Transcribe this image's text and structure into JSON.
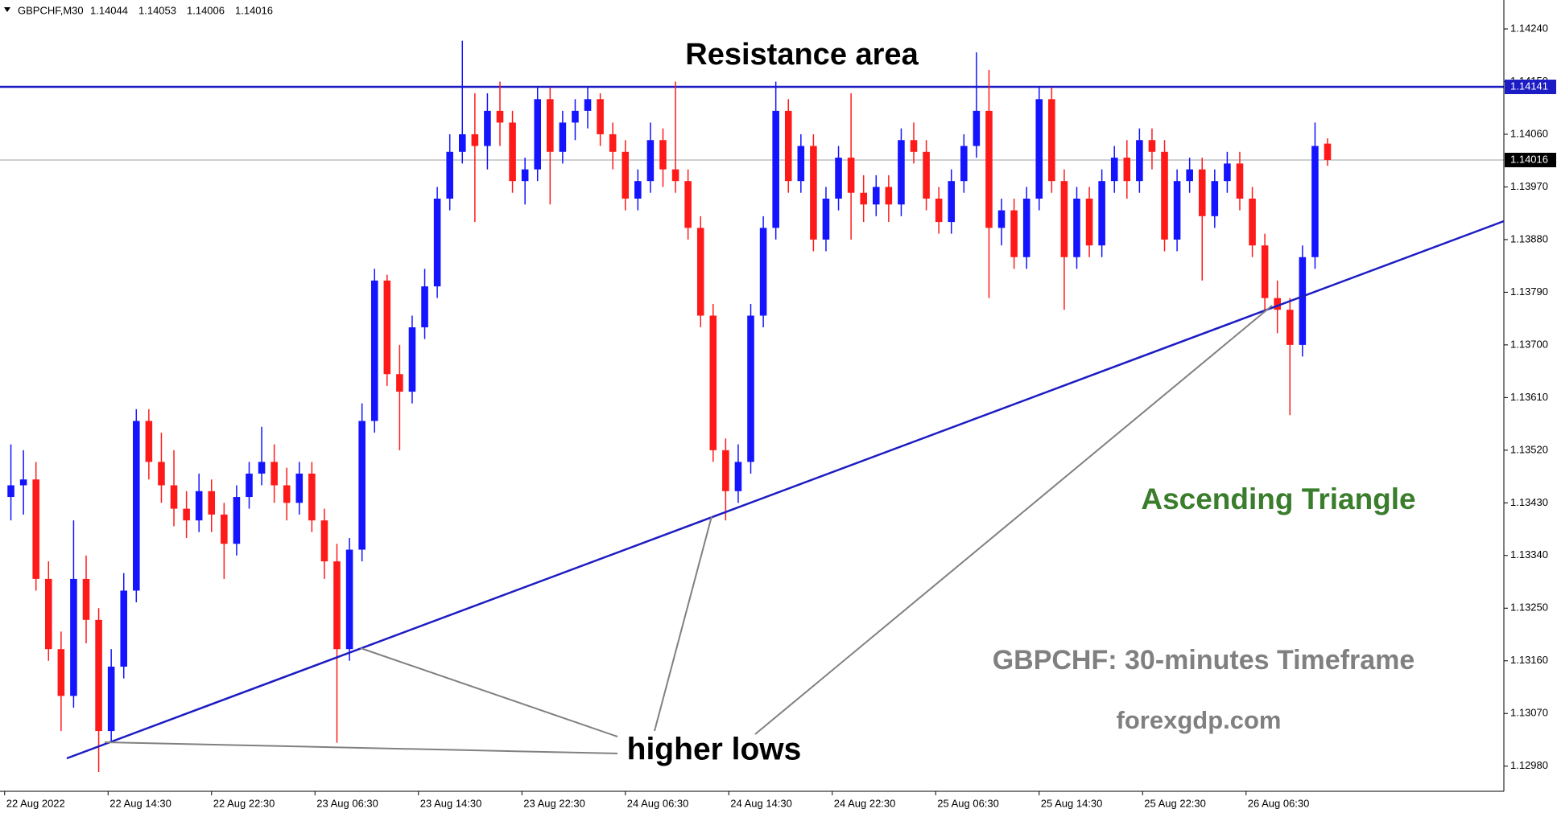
{
  "chart_data": {
    "type": "candlestick",
    "symbol": "GBPCHF,M30",
    "annotations": {
      "resistance": "Resistance area",
      "pattern": "Ascending Triangle",
      "timeframe": "GBPCHF: 30-minutes Timeframe",
      "site": "forexgdp.com",
      "lows": "higher lows"
    },
    "up_color": "#1414ff",
    "down_color": "#ff1a1a",
    "resistance_level": 1.14141,
    "ylim": [
      1.12937,
      1.14284
    ],
    "yticks": [
      {
        "value": 1.1424,
        "label": "1.14240"
      },
      {
        "value": 1.1415,
        "label": "1.14150"
      },
      {
        "value": 1.1406,
        "label": "1.14060"
      },
      {
        "value": 1.1397,
        "label": "1.13970"
      },
      {
        "value": 1.1388,
        "label": "1.13880"
      },
      {
        "value": 1.1379,
        "label": "1.13790"
      },
      {
        "value": 1.137,
        "label": "1.13700"
      },
      {
        "value": 1.1361,
        "label": "1.13610"
      },
      {
        "value": 1.1352,
        "label": "1.13520"
      },
      {
        "value": 1.1343,
        "label": "1.13430"
      },
      {
        "value": 1.1334,
        "label": "1.13340"
      },
      {
        "value": 1.1325,
        "label": "1.13250"
      },
      {
        "value": 1.1316,
        "label": "1.13160"
      },
      {
        "value": 1.1307,
        "label": "1.13070"
      },
      {
        "value": 1.1298,
        "label": "1.12980"
      }
    ],
    "xlim": [
      -0.87,
      119.06
    ],
    "xticks": [
      {
        "value": -0.5,
        "label": "22 Aug 2022"
      },
      {
        "value": 7.75,
        "label": "22 Aug 14:30"
      },
      {
        "value": 16,
        "label": "22 Aug 22:30"
      },
      {
        "value": 24.25,
        "label": "23 Aug 06:30"
      },
      {
        "value": 32.5,
        "label": "23 Aug 14:30"
      },
      {
        "value": 40.75,
        "label": "23 Aug 22:30"
      },
      {
        "value": 49,
        "label": "24 Aug 06:30"
      },
      {
        "value": 57.25,
        "label": "24 Aug 14:30"
      },
      {
        "value": 65.5,
        "label": "24 Aug 22:30"
      },
      {
        "value": 73.75,
        "label": "25 Aug 06:30"
      },
      {
        "value": 82,
        "label": "25 Aug 14:30"
      },
      {
        "value": 90.25,
        "label": "25 Aug 22:30"
      },
      {
        "value": 98.5,
        "label": "26 Aug 06:30"
      }
    ],
    "candles": [
      [
        1.1344,
        1.1353,
        1.134,
        1.1346
      ],
      [
        1.1346,
        1.1352,
        1.1341,
        1.1347
      ],
      [
        1.1347,
        1.135,
        1.1328,
        1.133
      ],
      [
        1.133,
        1.1333,
        1.1316,
        1.1318
      ],
      [
        1.1318,
        1.1321,
        1.1304,
        1.131
      ],
      [
        1.131,
        1.134,
        1.1308,
        1.133
      ],
      [
        1.133,
        1.1334,
        1.1319,
        1.1323
      ],
      [
        1.1323,
        1.1325,
        1.1297,
        1.1304
      ],
      [
        1.1304,
        1.1318,
        1.1302,
        1.1315
      ],
      [
        1.1315,
        1.1331,
        1.1313,
        1.1328
      ],
      [
        1.1328,
        1.1359,
        1.1326,
        1.1357
      ],
      [
        1.1357,
        1.1359,
        1.1347,
        1.135
      ],
      [
        1.135,
        1.1355,
        1.1343,
        1.1346
      ],
      [
        1.1346,
        1.1352,
        1.1339,
        1.1342
      ],
      [
        1.1342,
        1.1345,
        1.1337,
        1.134
      ],
      [
        1.134,
        1.1348,
        1.1338,
        1.1345
      ],
      [
        1.1345,
        1.1347,
        1.1338,
        1.1341
      ],
      [
        1.1341,
        1.1343,
        1.133,
        1.1336
      ],
      [
        1.1336,
        1.1346,
        1.1334,
        1.1344
      ],
      [
        1.1344,
        1.135,
        1.1342,
        1.1348
      ],
      [
        1.1348,
        1.1356,
        1.1346,
        1.135
      ],
      [
        1.135,
        1.1353,
        1.1343,
        1.1346
      ],
      [
        1.1346,
        1.1349,
        1.134,
        1.1343
      ],
      [
        1.1343,
        1.135,
        1.1341,
        1.1348
      ],
      [
        1.1348,
        1.135,
        1.1338,
        1.134
      ],
      [
        1.134,
        1.1342,
        1.133,
        1.1333
      ],
      [
        1.1333,
        1.1336,
        1.1302,
        1.1318
      ],
      [
        1.1318,
        1.1337,
        1.1316,
        1.1335
      ],
      [
        1.1335,
        1.136,
        1.1333,
        1.1357
      ],
      [
        1.1357,
        1.1383,
        1.1355,
        1.1381
      ],
      [
        1.1381,
        1.1382,
        1.1363,
        1.1365
      ],
      [
        1.1365,
        1.137,
        1.1352,
        1.1362
      ],
      [
        1.1362,
        1.1375,
        1.136,
        1.1373
      ],
      [
        1.1373,
        1.1383,
        1.1371,
        1.138
      ],
      [
        1.138,
        1.1397,
        1.1378,
        1.1395
      ],
      [
        1.1395,
        1.1406,
        1.1393,
        1.1403
      ],
      [
        1.1403,
        1.1422,
        1.1401,
        1.1406
      ],
      [
        1.1406,
        1.1413,
        1.1391,
        1.1404
      ],
      [
        1.1404,
        1.1413,
        1.14,
        1.141
      ],
      [
        1.141,
        1.1415,
        1.1404,
        1.1408
      ],
      [
        1.1408,
        1.141,
        1.1396,
        1.1398
      ],
      [
        1.1398,
        1.1402,
        1.1394,
        1.14
      ],
      [
        1.14,
        1.1414,
        1.1398,
        1.1412
      ],
      [
        1.1412,
        1.1414,
        1.1394,
        1.1403
      ],
      [
        1.1403,
        1.141,
        1.1401,
        1.1408
      ],
      [
        1.1408,
        1.1412,
        1.1405,
        1.141
      ],
      [
        1.141,
        1.1414,
        1.1407,
        1.1412
      ],
      [
        1.1412,
        1.1413,
        1.1404,
        1.1406
      ],
      [
        1.1406,
        1.1408,
        1.14,
        1.1403
      ],
      [
        1.1403,
        1.1405,
        1.1393,
        1.1395
      ],
      [
        1.1395,
        1.14,
        1.1393,
        1.1398
      ],
      [
        1.1398,
        1.1408,
        1.1396,
        1.1405
      ],
      [
        1.1405,
        1.1407,
        1.1397,
        1.14
      ],
      [
        1.14,
        1.1415,
        1.1396,
        1.1398
      ],
      [
        1.1398,
        1.14,
        1.1388,
        1.139
      ],
      [
        1.139,
        1.1392,
        1.1373,
        1.1375
      ],
      [
        1.1375,
        1.1377,
        1.135,
        1.1352
      ],
      [
        1.1352,
        1.1354,
        1.134,
        1.1345
      ],
      [
        1.1345,
        1.1353,
        1.1343,
        1.135
      ],
      [
        1.135,
        1.1377,
        1.1348,
        1.1375
      ],
      [
        1.1375,
        1.1392,
        1.1373,
        1.139
      ],
      [
        1.139,
        1.1415,
        1.1388,
        1.141
      ],
      [
        1.141,
        1.1412,
        1.1396,
        1.1398
      ],
      [
        1.1398,
        1.1406,
        1.1396,
        1.1404
      ],
      [
        1.1404,
        1.1406,
        1.1386,
        1.1388
      ],
      [
        1.1388,
        1.1397,
        1.1386,
        1.1395
      ],
      [
        1.1395,
        1.1404,
        1.1393,
        1.1402
      ],
      [
        1.1402,
        1.1413,
        1.1388,
        1.1396
      ],
      [
        1.1396,
        1.1399,
        1.1391,
        1.1394
      ],
      [
        1.1394,
        1.1399,
        1.1392,
        1.1397
      ],
      [
        1.1397,
        1.1399,
        1.1391,
        1.1394
      ],
      [
        1.1394,
        1.1407,
        1.1392,
        1.1405
      ],
      [
        1.1405,
        1.1408,
        1.1401,
        1.1403
      ],
      [
        1.1403,
        1.1405,
        1.1393,
        1.1395
      ],
      [
        1.1395,
        1.1397,
        1.1389,
        1.1391
      ],
      [
        1.1391,
        1.14,
        1.1389,
        1.1398
      ],
      [
        1.1398,
        1.1406,
        1.1396,
        1.1404
      ],
      [
        1.1404,
        1.142,
        1.1402,
        1.141
      ],
      [
        1.141,
        1.1417,
        1.1378,
        1.139
      ],
      [
        1.139,
        1.1395,
        1.1387,
        1.1393
      ],
      [
        1.1393,
        1.1395,
        1.1383,
        1.1385
      ],
      [
        1.1385,
        1.1397,
        1.1383,
        1.1395
      ],
      [
        1.1395,
        1.1414,
        1.1393,
        1.1412
      ],
      [
        1.1412,
        1.1414,
        1.1396,
        1.1398
      ],
      [
        1.1398,
        1.14,
        1.1376,
        1.1385
      ],
      [
        1.1385,
        1.1397,
        1.1383,
        1.1395
      ],
      [
        1.1395,
        1.1397,
        1.1385,
        1.1387
      ],
      [
        1.1387,
        1.14,
        1.1385,
        1.1398
      ],
      [
        1.1398,
        1.1404,
        1.1396,
        1.1402
      ],
      [
        1.1402,
        1.1405,
        1.1395,
        1.1398
      ],
      [
        1.1398,
        1.1407,
        1.1396,
        1.1405
      ],
      [
        1.1405,
        1.1407,
        1.14,
        1.1403
      ],
      [
        1.1403,
        1.1405,
        1.1386,
        1.1388
      ],
      [
        1.1388,
        1.14,
        1.1386,
        1.1398
      ],
      [
        1.1398,
        1.1402,
        1.1396,
        1.14
      ],
      [
        1.14,
        1.1402,
        1.1381,
        1.1392
      ],
      [
        1.1392,
        1.14,
        1.139,
        1.1398
      ],
      [
        1.1398,
        1.1403,
        1.1396,
        1.1401
      ],
      [
        1.1401,
        1.1403,
        1.1393,
        1.1395
      ],
      [
        1.1395,
        1.1397,
        1.1385,
        1.1387
      ],
      [
        1.1387,
        1.1389,
        1.1376,
        1.1378
      ],
      [
        1.1378,
        1.1381,
        1.1372,
        1.1376
      ],
      [
        1.1376,
        1.1378,
        1.1358,
        1.137
      ],
      [
        1.137,
        1.1387,
        1.1368,
        1.1385
      ],
      [
        1.1385,
        1.1408,
        1.1383,
        1.1404
      ],
      [
        1.14044,
        1.14053,
        1.14006,
        1.14016
      ]
    ]
  }
}
